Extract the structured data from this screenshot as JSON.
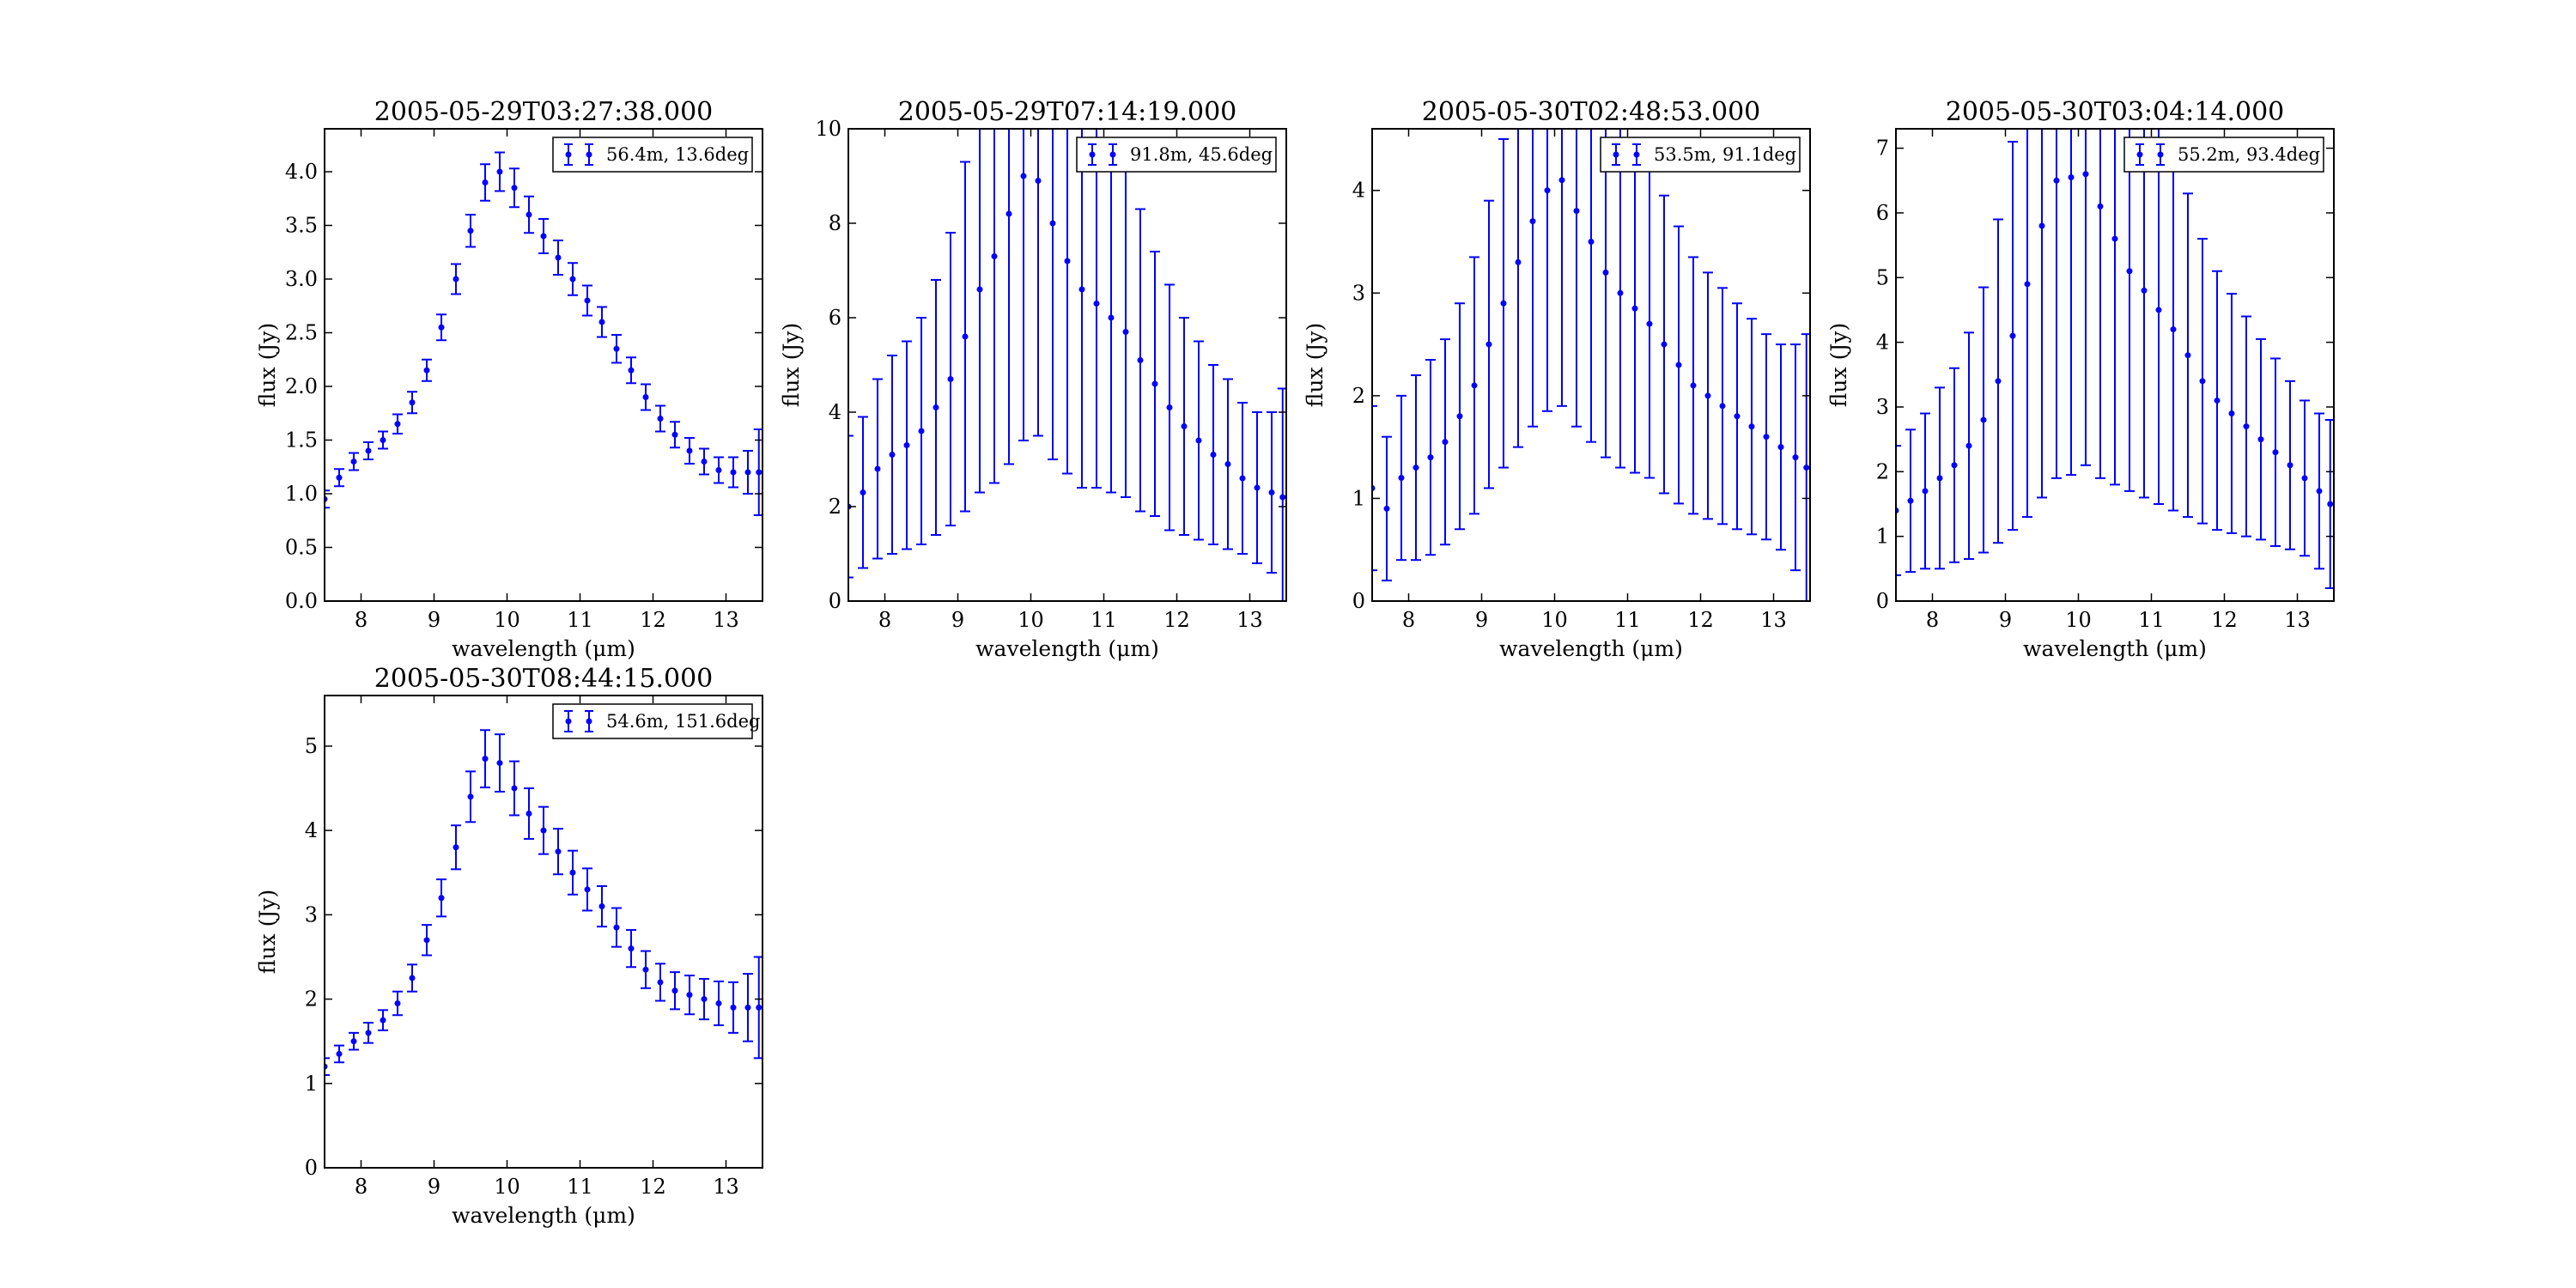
{
  "chart_data": [
    {
      "type": "scatter",
      "title": "2005-05-29T03:27:38.000",
      "xlabel": "wavelength (μm)",
      "ylabel": "flux (Jy)",
      "xlim": [
        7.5,
        13.5
      ],
      "ylim": [
        0,
        4.4
      ],
      "xticks": [
        "8",
        "9",
        "10",
        "11",
        "12",
        "13"
      ],
      "yticks": [
        "0.0",
        "0.5",
        "1.0",
        "1.5",
        "2.0",
        "2.5",
        "3.0",
        "3.5",
        "4.0"
      ],
      "legend": "top-right",
      "color": "#0000ff",
      "series": [
        {
          "name": "56.4m, 13.6deg",
          "x": [
            7.5,
            7.7,
            7.9,
            8.1,
            8.3,
            8.5,
            8.7,
            8.9,
            9.1,
            9.3,
            9.5,
            9.7,
            9.9,
            10.1,
            10.3,
            10.5,
            10.7,
            10.9,
            11.1,
            11.3,
            11.5,
            11.7,
            11.9,
            12.1,
            12.3,
            12.5,
            12.7,
            12.9,
            13.1,
            13.3,
            13.45
          ],
          "y": [
            0.95,
            1.15,
            1.3,
            1.4,
            1.5,
            1.65,
            1.85,
            2.15,
            2.55,
            3.0,
            3.45,
            3.9,
            4.0,
            3.85,
            3.6,
            3.4,
            3.2,
            3.0,
            2.8,
            2.6,
            2.35,
            2.15,
            1.9,
            1.7,
            1.55,
            1.4,
            1.3,
            1.22,
            1.2,
            1.2,
            1.2
          ],
          "err": [
            0.08,
            0.08,
            0.08,
            0.08,
            0.08,
            0.09,
            0.1,
            0.1,
            0.12,
            0.14,
            0.15,
            0.17,
            0.18,
            0.18,
            0.17,
            0.16,
            0.16,
            0.15,
            0.14,
            0.14,
            0.13,
            0.12,
            0.12,
            0.12,
            0.12,
            0.12,
            0.12,
            0.12,
            0.14,
            0.2,
            0.4
          ]
        }
      ]
    },
    {
      "type": "scatter",
      "title": "2005-05-29T07:14:19.000",
      "xlabel": "wavelength (μm)",
      "ylabel": "flux (Jy)",
      "xlim": [
        7.5,
        13.5
      ],
      "ylim": [
        0,
        10
      ],
      "xticks": [
        "8",
        "9",
        "10",
        "11",
        "12",
        "13"
      ],
      "yticks": [
        "0",
        "2",
        "4",
        "6",
        "8",
        "10"
      ],
      "legend": "top-right",
      "color": "#0000ff",
      "series": [
        {
          "name": "91.8m, 45.6deg",
          "x": [
            7.5,
            7.7,
            7.9,
            8.1,
            8.3,
            8.5,
            8.7,
            8.9,
            9.1,
            9.3,
            9.5,
            9.7,
            9.9,
            10.1,
            10.3,
            10.5,
            10.7,
            10.9,
            11.1,
            11.3,
            11.5,
            11.7,
            11.9,
            12.1,
            12.3,
            12.5,
            12.7,
            12.9,
            13.1,
            13.3,
            13.45
          ],
          "y": [
            2.0,
            2.3,
            2.8,
            3.1,
            3.3,
            3.6,
            4.1,
            4.7,
            5.6,
            6.6,
            7.3,
            8.2,
            9.0,
            8.9,
            8.0,
            7.2,
            6.6,
            6.3,
            6.0,
            5.7,
            5.1,
            4.6,
            4.1,
            3.7,
            3.4,
            3.1,
            2.9,
            2.6,
            2.4,
            2.3,
            2.2
          ],
          "err": [
            1.5,
            1.6,
            1.9,
            2.1,
            2.2,
            2.4,
            2.7,
            3.1,
            3.7,
            4.3,
            4.8,
            5.3,
            5.6,
            5.4,
            5.0,
            4.5,
            4.2,
            3.9,
            3.7,
            3.5,
            3.2,
            2.8,
            2.6,
            2.3,
            2.1,
            1.9,
            1.8,
            1.6,
            1.6,
            1.7,
            2.3
          ]
        }
      ]
    },
    {
      "type": "scatter",
      "title": "2005-05-30T02:48:53.000",
      "xlabel": "wavelength (μm)",
      "ylabel": "flux (Jy)",
      "xlim": [
        7.5,
        13.5
      ],
      "ylim": [
        0,
        4.6
      ],
      "xticks": [
        "8",
        "9",
        "10",
        "11",
        "12",
        "13"
      ],
      "yticks": [
        "0",
        "1",
        "2",
        "3",
        "4"
      ],
      "legend": "top-right",
      "color": "#0000ff",
      "series": [
        {
          "name": "53.5m, 91.1deg",
          "x": [
            7.5,
            7.7,
            7.9,
            8.1,
            8.3,
            8.5,
            8.7,
            8.9,
            9.1,
            9.3,
            9.5,
            9.7,
            9.9,
            10.1,
            10.3,
            10.5,
            10.7,
            10.9,
            11.1,
            11.3,
            11.5,
            11.7,
            11.9,
            12.1,
            12.3,
            12.5,
            12.7,
            12.9,
            13.1,
            13.3,
            13.45
          ],
          "y": [
            1.1,
            0.9,
            1.2,
            1.3,
            1.4,
            1.55,
            1.8,
            2.1,
            2.5,
            2.9,
            3.3,
            3.7,
            4.0,
            4.1,
            3.8,
            3.5,
            3.2,
            3.0,
            2.85,
            2.7,
            2.5,
            2.3,
            2.1,
            2.0,
            1.9,
            1.8,
            1.7,
            1.6,
            1.5,
            1.4,
            1.3
          ],
          "err": [
            0.8,
            0.7,
            0.8,
            0.9,
            0.95,
            1.0,
            1.1,
            1.25,
            1.4,
            1.6,
            1.8,
            2.0,
            2.15,
            2.2,
            2.1,
            1.95,
            1.8,
            1.7,
            1.6,
            1.5,
            1.45,
            1.35,
            1.25,
            1.2,
            1.15,
            1.1,
            1.05,
            1.0,
            1.0,
            1.1,
            1.3
          ]
        }
      ]
    },
    {
      "type": "scatter",
      "title": "2005-05-30T03:04:14.000",
      "xlabel": "wavelength (μm)",
      "ylabel": "flux (Jy)",
      "xlim": [
        7.5,
        13.5
      ],
      "ylim": [
        0,
        7.3
      ],
      "xticks": [
        "8",
        "9",
        "10",
        "11",
        "12",
        "13"
      ],
      "yticks": [
        "0",
        "1",
        "2",
        "3",
        "4",
        "5",
        "6",
        "7"
      ],
      "legend": "top-right",
      "color": "#0000ff",
      "series": [
        {
          "name": "55.2m, 93.4deg",
          "x": [
            7.5,
            7.7,
            7.9,
            8.1,
            8.3,
            8.5,
            8.7,
            8.9,
            9.1,
            9.3,
            9.5,
            9.7,
            9.9,
            10.1,
            10.3,
            10.5,
            10.7,
            10.9,
            11.1,
            11.3,
            11.5,
            11.7,
            11.9,
            12.1,
            12.3,
            12.5,
            12.7,
            12.9,
            13.1,
            13.3,
            13.45
          ],
          "y": [
            1.4,
            1.55,
            1.7,
            1.9,
            2.1,
            2.4,
            2.8,
            3.4,
            4.1,
            4.9,
            5.8,
            6.5,
            6.55,
            6.6,
            6.1,
            5.6,
            5.1,
            4.8,
            4.5,
            4.2,
            3.8,
            3.4,
            3.1,
            2.9,
            2.7,
            2.5,
            2.3,
            2.1,
            1.9,
            1.7,
            1.5
          ],
          "err": [
            1.0,
            1.1,
            1.2,
            1.4,
            1.5,
            1.75,
            2.05,
            2.5,
            3.0,
            3.6,
            4.2,
            4.6,
            4.6,
            4.5,
            4.2,
            3.8,
            3.4,
            3.2,
            3.0,
            2.8,
            2.5,
            2.2,
            2.0,
            1.85,
            1.7,
            1.55,
            1.45,
            1.3,
            1.2,
            1.2,
            1.3
          ]
        }
      ]
    },
    {
      "type": "scatter",
      "title": "2005-05-30T08:44:15.000",
      "xlabel": "wavelength (μm)",
      "ylabel": "flux (Jy)",
      "xlim": [
        7.5,
        13.5
      ],
      "ylim": [
        0,
        5.6
      ],
      "xticks": [
        "8",
        "9",
        "10",
        "11",
        "12",
        "13"
      ],
      "yticks": [
        "0",
        "1",
        "2",
        "3",
        "4",
        "5"
      ],
      "legend": "top-right",
      "color": "#0000ff",
      "series": [
        {
          "name": "54.6m, 151.6deg",
          "x": [
            7.5,
            7.7,
            7.9,
            8.1,
            8.3,
            8.5,
            8.7,
            8.9,
            9.1,
            9.3,
            9.5,
            9.7,
            9.9,
            10.1,
            10.3,
            10.5,
            10.7,
            10.9,
            11.1,
            11.3,
            11.5,
            11.7,
            11.9,
            12.1,
            12.3,
            12.5,
            12.7,
            12.9,
            13.1,
            13.3,
            13.45
          ],
          "y": [
            1.2,
            1.35,
            1.5,
            1.6,
            1.75,
            1.95,
            2.25,
            2.7,
            3.2,
            3.8,
            4.4,
            4.85,
            4.8,
            4.5,
            4.2,
            4.0,
            3.75,
            3.5,
            3.3,
            3.1,
            2.85,
            2.6,
            2.35,
            2.2,
            2.1,
            2.05,
            2.0,
            1.95,
            1.9,
            1.9,
            1.9
          ],
          "err": [
            0.1,
            0.1,
            0.1,
            0.12,
            0.12,
            0.14,
            0.16,
            0.18,
            0.22,
            0.26,
            0.3,
            0.34,
            0.34,
            0.32,
            0.3,
            0.28,
            0.27,
            0.26,
            0.25,
            0.24,
            0.23,
            0.22,
            0.22,
            0.22,
            0.22,
            0.23,
            0.24,
            0.26,
            0.3,
            0.4,
            0.6
          ]
        }
      ]
    }
  ]
}
